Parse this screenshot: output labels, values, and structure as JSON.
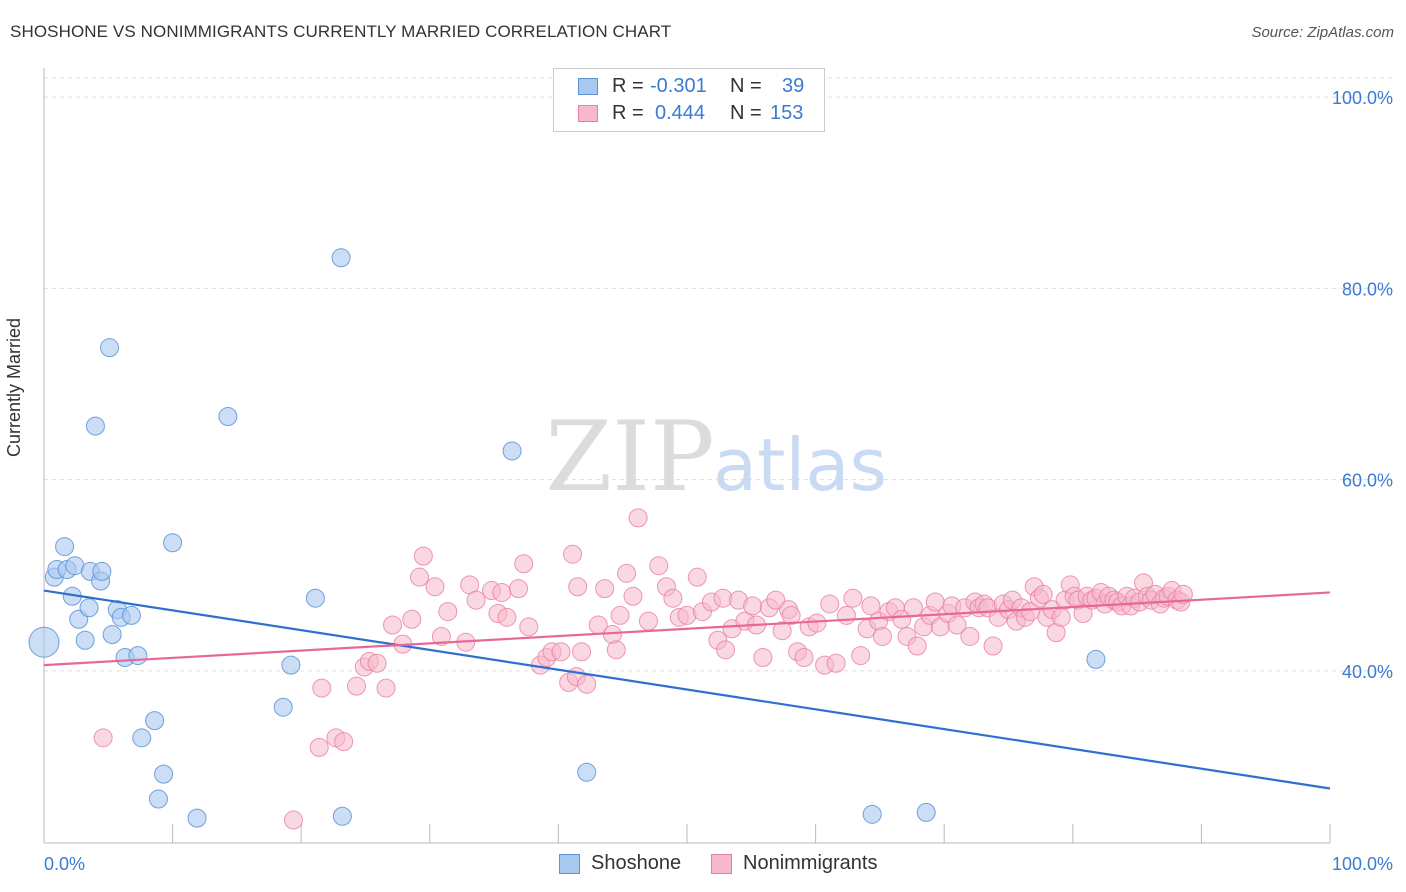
{
  "header": {
    "title": "SHOSHONE VS NONIMMIGRANTS CURRENTLY MARRIED CORRELATION CHART",
    "source": "Source: ZipAtlas.com"
  },
  "legend": {
    "rows": [
      {
        "r_label": "R =",
        "r_value": "-0.301",
        "n_label": "N =",
        "n_value": "39"
      },
      {
        "r_label": "R =",
        "r_value": "0.444",
        "n_label": "N =",
        "n_value": "153"
      }
    ]
  },
  "bottom_legend": {
    "items": [
      {
        "label": "Shoshone"
      },
      {
        "label": "Nonimmigrants"
      }
    ]
  },
  "watermark": {
    "zip": "ZIP",
    "atlas": "atlas"
  },
  "colors": {
    "shoshone_fill": "#a9c8ee",
    "shoshone_stroke": "#5b93d6",
    "shoshone_line": "#2f6fd0",
    "nonimm_fill": "#f6b8cb",
    "nonimm_stroke": "#e87fa0",
    "nonimm_line": "#e8679a",
    "axis_text": "#3a7bd5",
    "grid": "#dddddd"
  },
  "chart_data": {
    "type": "scatter",
    "title": "SHOSHONE VS NONIMMIGRANTS CURRENTLY MARRIED CORRELATION CHART",
    "xlabel": "",
    "ylabel": "Currently Married",
    "xlim": [
      0,
      100
    ],
    "ylim": [
      22,
      102
    ],
    "x_tick_labels": [
      "0.0%",
      "100.0%"
    ],
    "y_ticks": [
      40,
      60,
      80,
      100
    ],
    "y_tick_labels": [
      "40.0%",
      "60.0%",
      "80.0%",
      "100.0%"
    ],
    "grid": true,
    "legend_position": "top-center",
    "series": [
      {
        "name": "Shoshone",
        "r": -0.301,
        "n": 39,
        "trend": {
          "x": [
            0,
            100
          ],
          "y": [
            48.4,
            27.7
          ]
        },
        "points": [
          [
            0.0,
            43.0,
            30
          ],
          [
            0.8,
            49.8,
            18
          ],
          [
            1.0,
            50.6,
            18
          ],
          [
            1.6,
            53.0,
            18
          ],
          [
            1.8,
            50.6,
            18
          ],
          [
            2.2,
            47.8,
            18
          ],
          [
            2.4,
            51.0,
            18
          ],
          [
            2.7,
            45.4,
            18
          ],
          [
            3.2,
            43.2,
            18
          ],
          [
            3.5,
            46.6,
            18
          ],
          [
            3.6,
            50.4,
            18
          ],
          [
            4.0,
            65.6,
            18
          ],
          [
            4.4,
            49.4,
            18
          ],
          [
            4.5,
            50.4,
            18
          ],
          [
            5.1,
            73.8,
            18
          ],
          [
            5.3,
            43.8,
            18
          ],
          [
            5.7,
            46.4,
            18
          ],
          [
            6.0,
            45.6,
            18
          ],
          [
            6.3,
            41.4,
            18
          ],
          [
            6.8,
            45.8,
            18
          ],
          [
            7.3,
            41.6,
            18
          ],
          [
            7.6,
            33.0,
            18
          ],
          [
            8.6,
            34.8,
            18
          ],
          [
            8.9,
            26.6,
            18
          ],
          [
            9.3,
            29.2,
            18
          ],
          [
            10.0,
            53.4,
            18
          ],
          [
            11.9,
            24.6,
            18
          ],
          [
            14.3,
            66.6,
            18
          ],
          [
            18.6,
            36.2,
            18
          ],
          [
            19.2,
            40.6,
            18
          ],
          [
            21.1,
            47.6,
            18
          ],
          [
            23.1,
            83.2,
            18
          ],
          [
            23.2,
            24.8,
            18
          ],
          [
            36.4,
            63.0,
            18
          ],
          [
            42.2,
            29.4,
            18
          ],
          [
            64.4,
            25.0,
            18
          ],
          [
            68.6,
            25.2,
            18
          ],
          [
            81.8,
            41.2,
            18
          ]
        ]
      },
      {
        "name": "Nonimmigrants",
        "r": 0.444,
        "n": 153,
        "trend": {
          "x": [
            0,
            100
          ],
          "y": [
            40.6,
            48.2
          ]
        },
        "points": [
          [
            4.6,
            33.0
          ],
          [
            19.4,
            24.4
          ],
          [
            21.4,
            32.0
          ],
          [
            21.6,
            38.2
          ],
          [
            22.7,
            33.0
          ],
          [
            23.3,
            32.6
          ],
          [
            24.3,
            38.4
          ],
          [
            24.9,
            40.4
          ],
          [
            25.3,
            41.0
          ],
          [
            25.9,
            40.8
          ],
          [
            26.6,
            38.2
          ],
          [
            27.1,
            44.8
          ],
          [
            27.9,
            42.8
          ],
          [
            28.6,
            45.4
          ],
          [
            29.2,
            49.8
          ],
          [
            29.5,
            52.0
          ],
          [
            30.4,
            48.8
          ],
          [
            30.9,
            43.6
          ],
          [
            31.4,
            46.2
          ],
          [
            32.8,
            43.0
          ],
          [
            33.1,
            49.0
          ],
          [
            33.6,
            47.4
          ],
          [
            34.8,
            48.4
          ],
          [
            35.3,
            46.0
          ],
          [
            35.6,
            48.2
          ],
          [
            36.0,
            45.6
          ],
          [
            36.9,
            48.6
          ],
          [
            37.3,
            51.2
          ],
          [
            37.7,
            44.6
          ],
          [
            38.6,
            40.6
          ],
          [
            39.1,
            41.4
          ],
          [
            39.5,
            42.0
          ],
          [
            40.2,
            42.0
          ],
          [
            40.8,
            38.8
          ],
          [
            41.1,
            52.2
          ],
          [
            41.4,
            39.4
          ],
          [
            41.5,
            48.8
          ],
          [
            41.8,
            42.0
          ],
          [
            42.2,
            38.6
          ],
          [
            43.1,
            44.8
          ],
          [
            43.6,
            48.6
          ],
          [
            44.2,
            43.8
          ],
          [
            44.5,
            42.2
          ],
          [
            44.8,
            45.8
          ],
          [
            45.3,
            50.2
          ],
          [
            45.8,
            47.8
          ],
          [
            46.2,
            56.0
          ],
          [
            47.0,
            45.2
          ],
          [
            47.8,
            51.0
          ],
          [
            48.4,
            48.8
          ],
          [
            48.9,
            47.6
          ],
          [
            49.4,
            45.6
          ],
          [
            50.0,
            45.8
          ],
          [
            50.8,
            49.8
          ],
          [
            51.2,
            46.2
          ],
          [
            51.9,
            47.2
          ],
          [
            52.4,
            43.2
          ],
          [
            52.8,
            47.6
          ],
          [
            53.0,
            42.2
          ],
          [
            53.5,
            44.4
          ],
          [
            54.0,
            47.4
          ],
          [
            54.5,
            45.2
          ],
          [
            55.1,
            46.8
          ],
          [
            55.4,
            44.8
          ],
          [
            55.9,
            41.4
          ],
          [
            56.4,
            46.6
          ],
          [
            56.9,
            47.4
          ],
          [
            57.4,
            44.2
          ],
          [
            57.9,
            46.4
          ],
          [
            58.1,
            45.8
          ],
          [
            58.6,
            42.0
          ],
          [
            59.1,
            41.4
          ],
          [
            59.5,
            44.6
          ],
          [
            60.1,
            45.0
          ],
          [
            60.7,
            40.6
          ],
          [
            61.1,
            47.0
          ],
          [
            61.6,
            40.8
          ],
          [
            62.4,
            45.8
          ],
          [
            62.9,
            47.6
          ],
          [
            63.5,
            41.6
          ],
          [
            64.0,
            44.4
          ],
          [
            64.3,
            46.8
          ],
          [
            64.9,
            45.2
          ],
          [
            65.2,
            43.6
          ],
          [
            65.7,
            46.2
          ],
          [
            66.2,
            46.6
          ],
          [
            66.7,
            45.4
          ],
          [
            67.1,
            43.6
          ],
          [
            67.6,
            46.6
          ],
          [
            67.9,
            42.6
          ],
          [
            68.4,
            44.6
          ],
          [
            68.9,
            45.8
          ],
          [
            69.3,
            47.2
          ],
          [
            69.7,
            44.6
          ],
          [
            70.3,
            46.0
          ],
          [
            70.6,
            46.8
          ],
          [
            71.0,
            44.8
          ],
          [
            71.6,
            46.6
          ],
          [
            72.0,
            43.6
          ],
          [
            72.4,
            47.2
          ],
          [
            72.7,
            46.6
          ],
          [
            73.1,
            47.0
          ],
          [
            73.4,
            46.6
          ],
          [
            73.8,
            42.6
          ],
          [
            74.2,
            45.6
          ],
          [
            74.6,
            47.0
          ],
          [
            75.0,
            46.4
          ],
          [
            75.3,
            47.4
          ],
          [
            75.6,
            45.2
          ],
          [
            76.0,
            46.6
          ],
          [
            76.3,
            45.6
          ],
          [
            76.7,
            46.2
          ],
          [
            77.0,
            48.8
          ],
          [
            77.4,
            47.6
          ],
          [
            77.7,
            48.0
          ],
          [
            78.0,
            45.6
          ],
          [
            78.4,
            46.4
          ],
          [
            78.7,
            44.0
          ],
          [
            79.1,
            45.6
          ],
          [
            79.4,
            47.4
          ],
          [
            79.8,
            49.0
          ],
          [
            80.1,
            47.8
          ],
          [
            80.4,
            47.4
          ],
          [
            80.8,
            46.0
          ],
          [
            81.1,
            47.8
          ],
          [
            81.5,
            47.4
          ],
          [
            81.8,
            47.6
          ],
          [
            82.2,
            48.2
          ],
          [
            82.5,
            47.0
          ],
          [
            82.8,
            47.8
          ],
          [
            83.2,
            47.4
          ],
          [
            83.5,
            47.2
          ],
          [
            83.8,
            46.8
          ],
          [
            84.2,
            47.8
          ],
          [
            84.5,
            46.8
          ],
          [
            84.8,
            47.6
          ],
          [
            85.2,
            47.2
          ],
          [
            85.5,
            49.2
          ],
          [
            85.8,
            47.8
          ],
          [
            86.1,
            47.4
          ],
          [
            86.4,
            48.0
          ],
          [
            86.8,
            47.0
          ],
          [
            87.1,
            47.6
          ],
          [
            87.4,
            47.8
          ],
          [
            87.7,
            48.4
          ],
          [
            88.1,
            47.4
          ],
          [
            88.4,
            47.2
          ],
          [
            88.6,
            48.0
          ]
        ]
      }
    ]
  }
}
